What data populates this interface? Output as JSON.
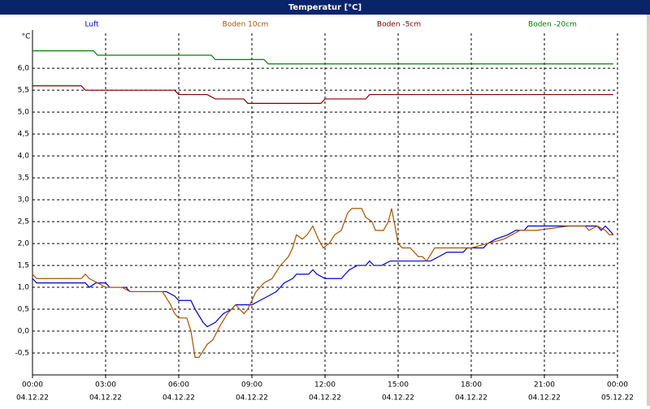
{
  "chart_data": {
    "type": "line",
    "title": "Temperatur [°C]",
    "y_label": "°C",
    "xlim": [
      0,
      24
    ],
    "ylim": [
      -1,
      6.8
    ],
    "grid": true,
    "legend": "top",
    "xticks": [
      {
        "value": 0,
        "label": "00:00",
        "date": "04.12.22"
      },
      {
        "value": 3,
        "label": "03:00",
        "date": "04.12.22"
      },
      {
        "value": 6,
        "label": "06:00",
        "date": "04.12.22"
      },
      {
        "value": 9,
        "label": "09:00",
        "date": "04.12.22"
      },
      {
        "value": 12,
        "label": "12:00",
        "date": "04.12.22"
      },
      {
        "value": 15,
        "label": "15:00",
        "date": "04.12.22"
      },
      {
        "value": 18,
        "label": "18:00",
        "date": "04.12.22"
      },
      {
        "value": 21,
        "label": "21:00",
        "date": "04.12.22"
      },
      {
        "value": 24,
        "label": "00:00",
        "date": "05.12.22"
      }
    ],
    "yticks": [
      {
        "value": -0.5,
        "label": "-0,5"
      },
      {
        "value": 0,
        "label": "0,0"
      },
      {
        "value": 0.5,
        "label": "0,5"
      },
      {
        "value": 1,
        "label": "1,0"
      },
      {
        "value": 1.5,
        "label": "1,5"
      },
      {
        "value": 2,
        "label": "2,0"
      },
      {
        "value": 2.5,
        "label": "2,5"
      },
      {
        "value": 3,
        "label": "3,0"
      },
      {
        "value": 3.5,
        "label": "3,5"
      },
      {
        "value": 4,
        "label": "4,0"
      },
      {
        "value": 4.5,
        "label": "4,5"
      },
      {
        "value": 5,
        "label": "5,0"
      },
      {
        "value": 5.5,
        "label": "5,5"
      },
      {
        "value": 6,
        "label": "6,0"
      }
    ],
    "series": [
      {
        "name": "Luft",
        "color": "#0000cc",
        "x": [
          0,
          0.17,
          2,
          2.17,
          2.33,
          2.6,
          3,
          3.17,
          3.83,
          4,
          5.5,
          5.83,
          6,
          6.5,
          6.67,
          7,
          7.17,
          7.5,
          7.83,
          8.17,
          8.33,
          9,
          9.33,
          9.67,
          10,
          10.33,
          10.67,
          10.83,
          11.33,
          11.5,
          11.67,
          12,
          12.67,
          12.83,
          13,
          13.33,
          13.67,
          13.83,
          14,
          14.33,
          14.67,
          16.33,
          16.67,
          17,
          17.67,
          17.83,
          18.5,
          18.67,
          19,
          19.5,
          19.83,
          20.17,
          20.33,
          21.33,
          21.67,
          23.17,
          23.33,
          23.5,
          23.67,
          23.83
        ],
        "values": [
          1.2,
          1.1,
          1.1,
          1.1,
          1.0,
          1.1,
          1.1,
          1.0,
          1.0,
          0.9,
          0.9,
          0.8,
          0.7,
          0.7,
          0.5,
          0.2,
          0.1,
          0.2,
          0.4,
          0.5,
          0.6,
          0.6,
          0.7,
          0.8,
          0.9,
          1.1,
          1.2,
          1.3,
          1.3,
          1.4,
          1.3,
          1.2,
          1.2,
          1.3,
          1.4,
          1.5,
          1.5,
          1.6,
          1.5,
          1.5,
          1.6,
          1.6,
          1.7,
          1.8,
          1.8,
          1.9,
          1.9,
          2.0,
          2.1,
          2.2,
          2.3,
          2.3,
          2.4,
          2.4,
          2.4,
          2.4,
          2.3,
          2.4,
          2.3,
          2.2
        ]
      },
      {
        "name": "Boden 10cm",
        "color": "#a85400",
        "x": [
          0,
          0.17,
          0.67,
          2,
          2.17,
          2.33,
          2.67,
          3,
          3.67,
          4,
          5.33,
          5.67,
          5.83,
          6,
          6.33,
          6.5,
          6.67,
          6.83,
          7.17,
          7.4,
          7.67,
          8,
          8.33,
          8.67,
          8.83,
          9.17,
          9.5,
          9.83,
          10.17,
          10.5,
          10.67,
          10.83,
          11.07,
          11.27,
          11.5,
          11.73,
          11.93,
          12.17,
          12.4,
          12.67,
          12.93,
          13.1,
          13.33,
          13.5,
          13.67,
          13.93,
          14.07,
          14.4,
          14.6,
          14.73,
          14.87,
          15,
          15.17,
          15.5,
          15.83,
          16,
          16.17,
          16.5,
          17.33,
          18,
          18.67,
          19.33,
          20,
          20.67,
          22,
          22.67,
          22.83,
          23.17,
          23.5,
          23.67,
          23.83
        ],
        "values": [
          1.3,
          1.2,
          1.2,
          1.2,
          1.3,
          1.2,
          1.1,
          1.0,
          1.0,
          0.9,
          0.9,
          0.6,
          0.4,
          0.3,
          0.3,
          0.0,
          -0.6,
          -0.6,
          -0.3,
          -0.2,
          0.1,
          0.4,
          0.6,
          0.4,
          0.5,
          0.9,
          1.1,
          1.2,
          1.5,
          1.7,
          1.9,
          2.2,
          2.1,
          2.2,
          2.4,
          2.1,
          1.9,
          2.0,
          2.2,
          2.3,
          2.7,
          2.8,
          2.8,
          2.8,
          2.6,
          2.5,
          2.3,
          2.3,
          2.5,
          2.8,
          2.4,
          2.0,
          1.9,
          1.9,
          1.7,
          1.7,
          1.6,
          1.9,
          1.9,
          1.9,
          2.0,
          2.1,
          2.3,
          2.3,
          2.4,
          2.4,
          2.3,
          2.4,
          2.3,
          2.2,
          2.2
        ]
      },
      {
        "name": "Boden -5cm",
        "color": "#800000",
        "x": [
          0,
          2,
          2.17,
          5.83,
          6,
          7.17,
          7.5,
          8.67,
          8.83,
          11.83,
          12,
          13.67,
          13.83,
          23.83
        ],
        "values": [
          5.6,
          5.6,
          5.5,
          5.5,
          5.4,
          5.4,
          5.3,
          5.3,
          5.2,
          5.2,
          5.3,
          5.3,
          5.4,
          5.4
        ]
      },
      {
        "name": "Boden -20cm",
        "color": "#008000",
        "x": [
          0,
          2.5,
          2.67,
          7.33,
          7.5,
          9.5,
          9.67,
          23.83
        ],
        "values": [
          6.4,
          6.4,
          6.3,
          6.3,
          6.2,
          6.2,
          6.1,
          6.1
        ]
      }
    ]
  }
}
